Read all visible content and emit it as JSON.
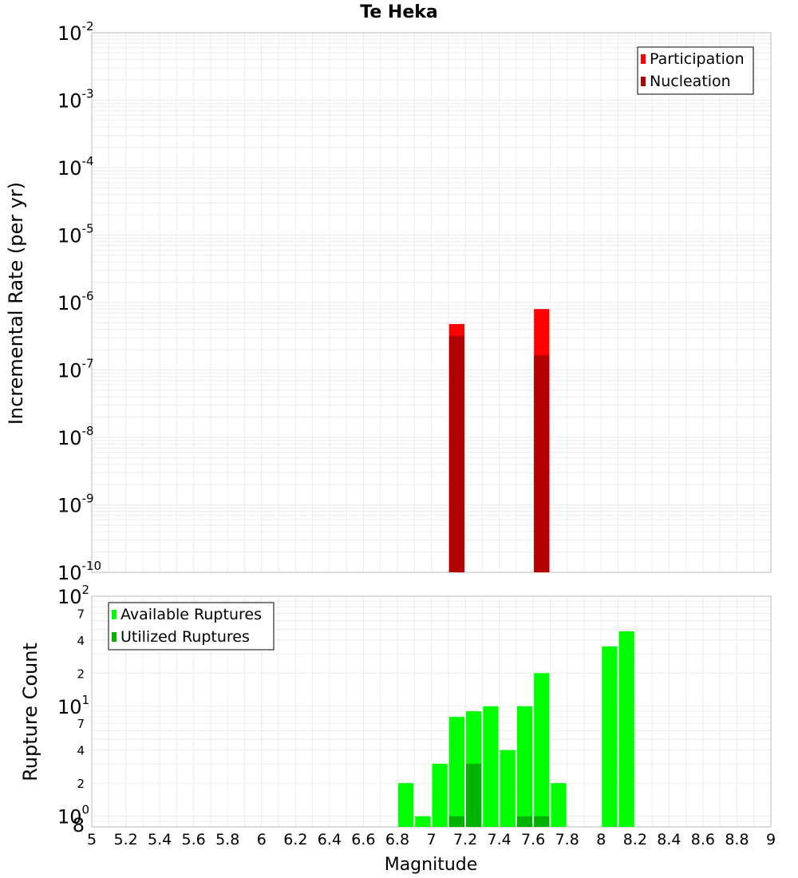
{
  "chart_data": {
    "type": "bar",
    "title": "Te Heka",
    "xlabel": "Magnitude",
    "xlim": [
      5,
      9
    ],
    "x_ticks": [
      "5",
      "5.2",
      "5.4",
      "5.6",
      "5.8",
      "6",
      "6.2",
      "6.4",
      "6.6",
      "6.8",
      "7",
      "7.2",
      "7.4",
      "7.6",
      "7.8",
      "8",
      "8.2",
      "8.4",
      "8.6",
      "8.8",
      "9"
    ],
    "bin_width": 0.1,
    "panels": [
      {
        "ylabel": "Incremental Rate (per yr)",
        "yscale": "log",
        "ylim": [
          1e-10,
          0.01
        ],
        "y_ticks": [
          {
            "value": 1e-10,
            "base": "10",
            "exp": "-10"
          },
          {
            "value": 1e-09,
            "base": "10",
            "exp": "-9"
          },
          {
            "value": 1e-08,
            "base": "10",
            "exp": "-8"
          },
          {
            "value": 1e-07,
            "base": "10",
            "exp": "-7"
          },
          {
            "value": 1e-06,
            "base": "10",
            "exp": "-6"
          },
          {
            "value": 1e-05,
            "base": "10",
            "exp": "-5"
          },
          {
            "value": 0.0001,
            "base": "10",
            "exp": "-4"
          },
          {
            "value": 0.001,
            "base": "10",
            "exp": "-3"
          },
          {
            "value": 0.01,
            "base": "10",
            "exp": "-2"
          }
        ],
        "legend_position": "top-right",
        "series": [
          {
            "name": "Participation",
            "color": "#ff0000",
            "x": [
              7.15,
              7.65
            ],
            "values": [
              4.8e-07,
              8e-07
            ]
          },
          {
            "name": "Nucleation",
            "color": "#b20000",
            "x": [
              7.15,
              7.65
            ],
            "values": [
              3.2e-07,
              1.65e-07
            ]
          }
        ]
      },
      {
        "ylabel": "Rupture Count",
        "yscale": "log",
        "ylim": [
          0.8,
          100
        ],
        "y_ticks": [
          {
            "value": 1,
            "base": "10",
            "exp": "0"
          },
          {
            "value": 10,
            "base": "10",
            "exp": "1"
          },
          {
            "value": 100,
            "base": "10",
            "exp": "2"
          }
        ],
        "minor_tick_labels": [
          {
            "value": 0.8,
            "label": "8"
          },
          {
            "value": 2,
            "label": "2"
          },
          {
            "value": 4,
            "label": "4"
          },
          {
            "value": 7,
            "label": "7"
          },
          {
            "value": 20,
            "label": "2"
          },
          {
            "value": 40,
            "label": "4"
          },
          {
            "value": 70,
            "label": "7"
          }
        ],
        "legend_position": "top-left",
        "series": [
          {
            "name": "Available Ruptures",
            "color": "#00ff00",
            "x": [
              6.85,
              6.95,
              7.05,
              7.15,
              7.25,
              7.35,
              7.45,
              7.55,
              7.65,
              7.75,
              8.05,
              8.15
            ],
            "values": [
              2,
              1,
              3,
              8,
              9,
              10,
              4,
              10,
              20,
              2,
              35,
              48
            ]
          },
          {
            "name": "Utilized Ruptures",
            "color": "#00b200",
            "x": [
              7.15,
              7.25,
              7.55,
              7.65
            ],
            "values": [
              1,
              3,
              1,
              1
            ]
          }
        ]
      }
    ]
  }
}
